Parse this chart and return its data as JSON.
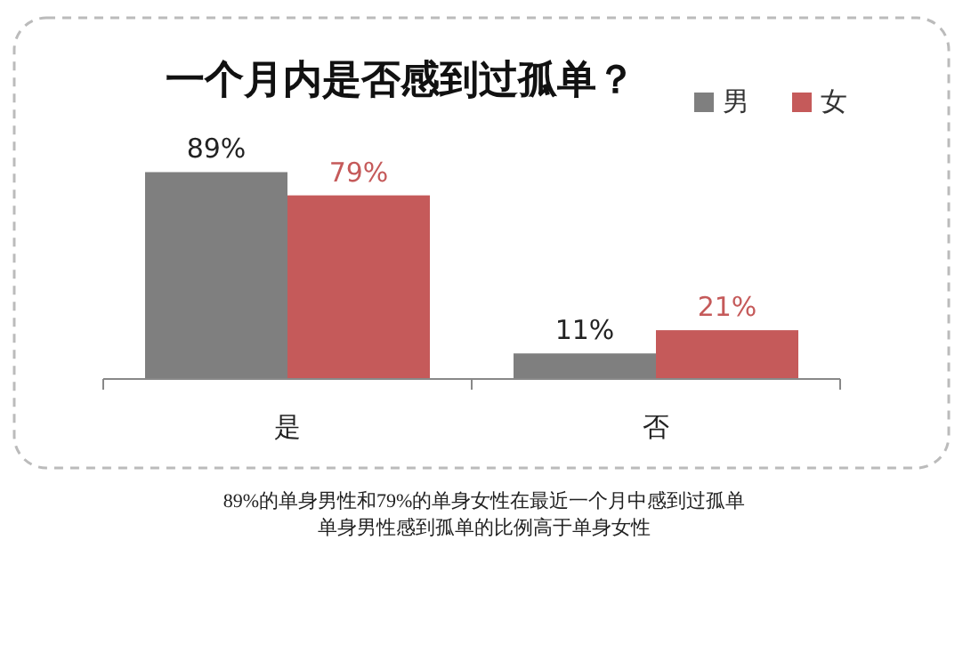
{
  "chart_data": {
    "type": "bar",
    "title": "一个月内是否感到过孤单？",
    "categories": [
      "是",
      "否"
    ],
    "series": [
      {
        "name": "男",
        "color": "#7f7f7f",
        "values": [
          89,
          11
        ],
        "value_labels": [
          "89%",
          "11%"
        ]
      },
      {
        "name": "女",
        "color": "#c55a5a",
        "values": [
          79,
          21
        ],
        "value_labels": [
          "79%",
          "21%"
        ]
      }
    ],
    "legend": "top right",
    "annotations": [
      "89%的单身男性和79%的单身女性在最近一个月中感到过孤单",
      "单身男性感到孤单的比例高于单身女性"
    ]
  }
}
